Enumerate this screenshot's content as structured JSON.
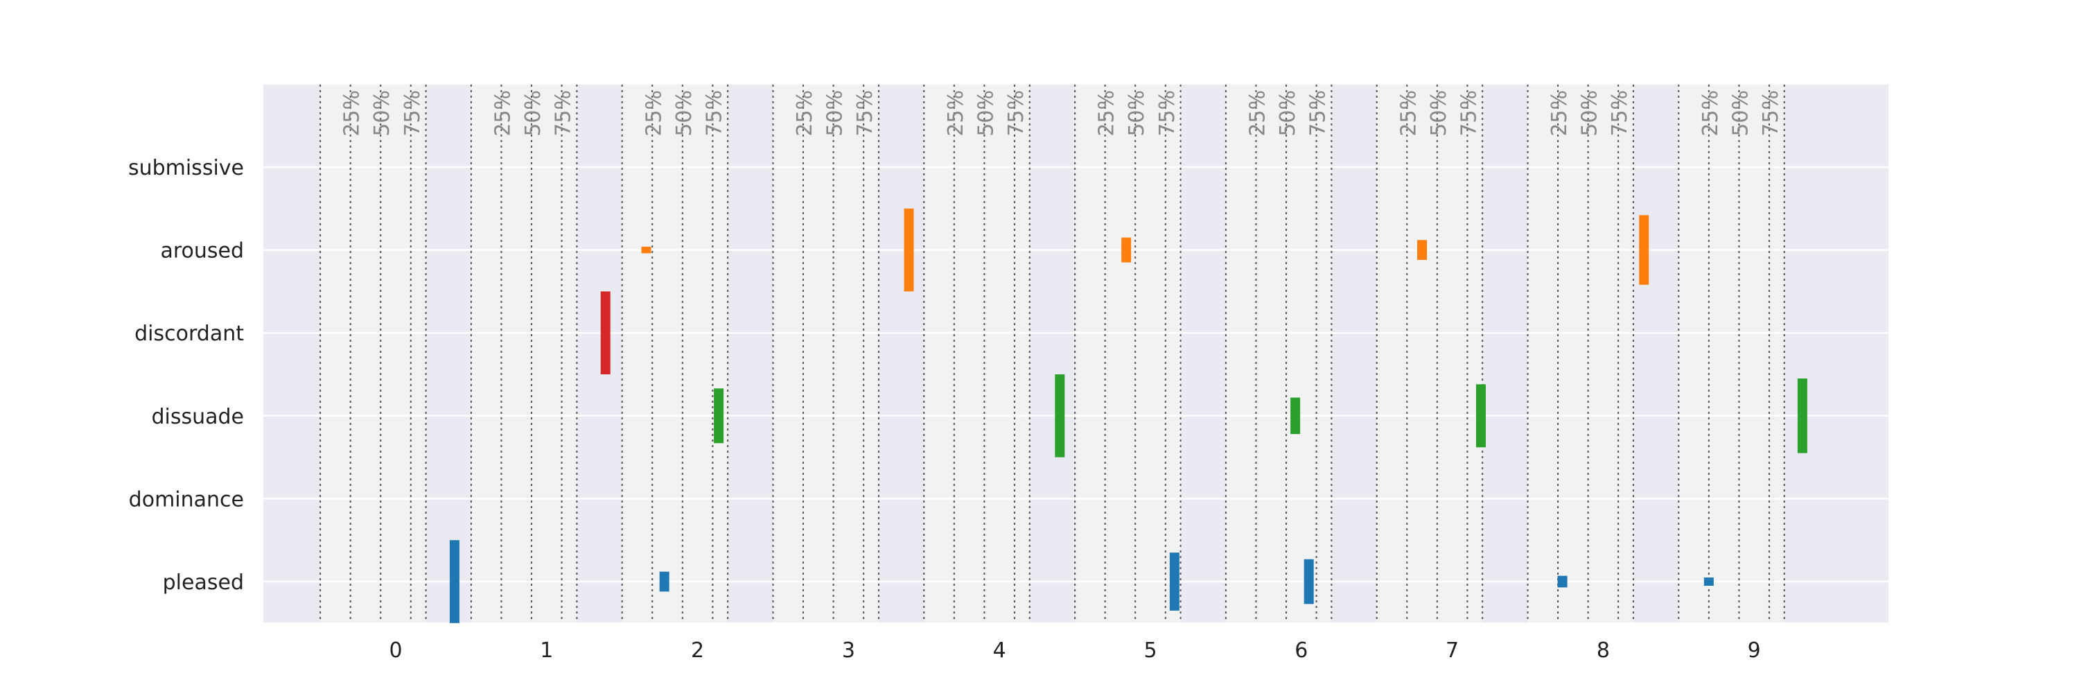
{
  "chart_data": {
    "type": "bar",
    "title": "",
    "xlabel": "",
    "ylabel": "",
    "x_categories": [
      "0",
      "1",
      "2",
      "3",
      "4",
      "5",
      "6",
      "7",
      "8",
      "9"
    ],
    "y_categories": [
      "submissive",
      "aroused",
      "discordant",
      "dissuade",
      "dominance",
      "pleased"
    ],
    "quartile_labels": [
      "25%",
      "50%",
      "75%"
    ],
    "colors": {
      "pleased": "#1f77b4",
      "dominance": "#ff7f0e",
      "dissuade": "#2ca02c",
      "discordant": "#d62728",
      "background": "#eaeaf2",
      "panel": "#f2f2f2",
      "grid": "#ffffff",
      "quartile_line": "#555555",
      "tick_text": "#222222",
      "quartile_text": "#888888"
    },
    "bars": [
      {
        "x": 0.39,
        "category": "pleased",
        "low": -0.5,
        "high": 0.5
      },
      {
        "x": 1.39,
        "category": "discordant",
        "low": 2.5,
        "high": 3.5
      },
      {
        "x": 1.66,
        "category": "dominance",
        "low": 3.96,
        "high": 4.04
      },
      {
        "x": 1.78,
        "category": "pleased",
        "low": -0.12,
        "high": 0.12
      },
      {
        "x": 2.14,
        "category": "dissuade",
        "low": 1.67,
        "high": 2.33
      },
      {
        "x": 3.4,
        "category": "dominance",
        "low": 3.5,
        "high": 4.5
      },
      {
        "x": 4.4,
        "category": "dissuade",
        "low": 1.5,
        "high": 2.5
      },
      {
        "x": 4.84,
        "category": "dominance",
        "low": 3.85,
        "high": 4.15
      },
      {
        "x": 5.16,
        "category": "pleased",
        "low": -0.35,
        "high": 0.35
      },
      {
        "x": 5.96,
        "category": "dissuade",
        "low": 1.78,
        "high": 2.22
      },
      {
        "x": 6.05,
        "category": "pleased",
        "low": -0.27,
        "high": 0.27
      },
      {
        "x": 6.8,
        "category": "dominance",
        "low": 3.88,
        "high": 4.12
      },
      {
        "x": 7.19,
        "category": "dissuade",
        "low": 1.62,
        "high": 2.38
      },
      {
        "x": 7.73,
        "category": "pleased",
        "low": -0.07,
        "high": 0.07
      },
      {
        "x": 8.27,
        "category": "dominance",
        "low": 3.58,
        "high": 4.42
      },
      {
        "x": 8.7,
        "category": "pleased",
        "low": -0.05,
        "high": 0.05
      },
      {
        "x": 9.32,
        "category": "dissuade",
        "low": 1.55,
        "high": 2.45
      }
    ]
  }
}
